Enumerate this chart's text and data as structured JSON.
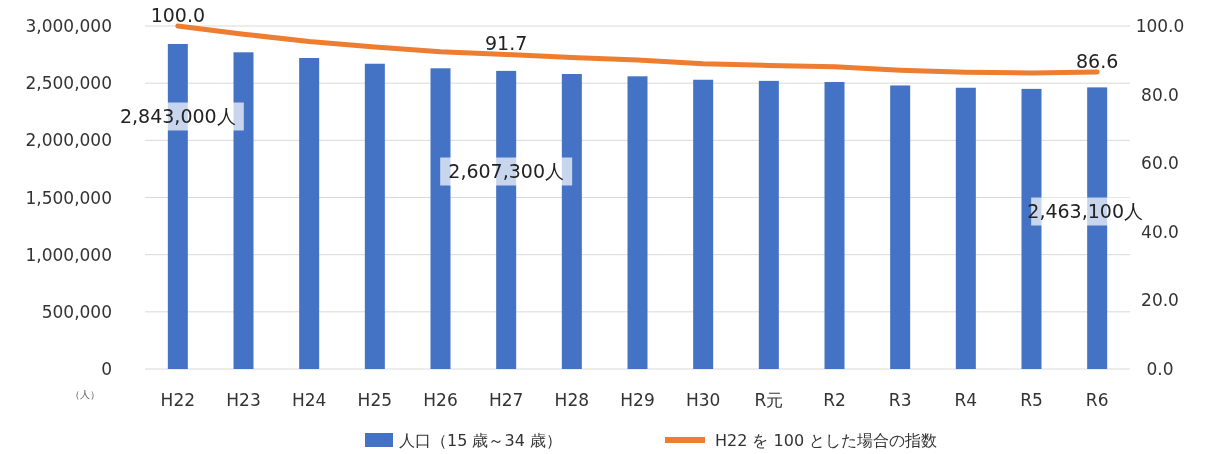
{
  "chart_data": {
    "type": "bar",
    "categories": [
      "H22",
      "H23",
      "H24",
      "H25",
      "H26",
      "H27",
      "H28",
      "H29",
      "H30",
      "R元",
      "R2",
      "R3",
      "R4",
      "R5",
      "R6"
    ],
    "series": [
      {
        "name": "人口（15 歳～34 歳）",
        "color": "#4472c4",
        "values": [
          2843000,
          2770000,
          2720000,
          2670000,
          2630000,
          2607300,
          2580000,
          2560000,
          2530000,
          2520000,
          2510000,
          2480000,
          2460000,
          2450000,
          2463100
        ],
        "value_labels": [
          "2,843,000人",
          null,
          null,
          null,
          null,
          "2,607,300人",
          null,
          null,
          null,
          null,
          null,
          null,
          null,
          null,
          "2,463,100人"
        ]
      },
      {
        "name": "H22 を 100 とした場合の指数",
        "type": "line",
        "axis": "y2",
        "color": "#ed7d31",
        "values": [
          100.0,
          97.6,
          95.5,
          93.9,
          92.5,
          91.7,
          90.8,
          90.1,
          89.0,
          88.5,
          88.1,
          87.1,
          86.5,
          86.3,
          86.6
        ],
        "value_labels": [
          "100.0",
          null,
          null,
          null,
          null,
          "91.7",
          null,
          null,
          null,
          null,
          null,
          null,
          null,
          null,
          "86.6"
        ]
      }
    ],
    "ylim": [
      0,
      3000000
    ],
    "yticks": [
      {
        "value": 0,
        "label": "0"
      },
      {
        "value": 500000,
        "label": "500,000"
      },
      {
        "value": 1000000,
        "label": "1,000,000"
      },
      {
        "value": 1500000,
        "label": "1,500,000"
      },
      {
        "value": 2000000,
        "label": "2,000,000"
      },
      {
        "value": 2500000,
        "label": "2,500,000"
      },
      {
        "value": 3000000,
        "label": "3,000,000"
      }
    ],
    "y2lim": [
      0,
      100
    ],
    "y2ticks": [
      {
        "value": 0,
        "label": "0.0"
      },
      {
        "value": 20,
        "label": "20.0"
      },
      {
        "value": 40,
        "label": "40.0"
      },
      {
        "value": 60,
        "label": "60.0"
      },
      {
        "value": 80,
        "label": "80.0"
      },
      {
        "value": 100,
        "label": "100.0"
      }
    ],
    "annotations": [
      "（人）"
    ],
    "grid": "y",
    "legend": "bottom"
  }
}
